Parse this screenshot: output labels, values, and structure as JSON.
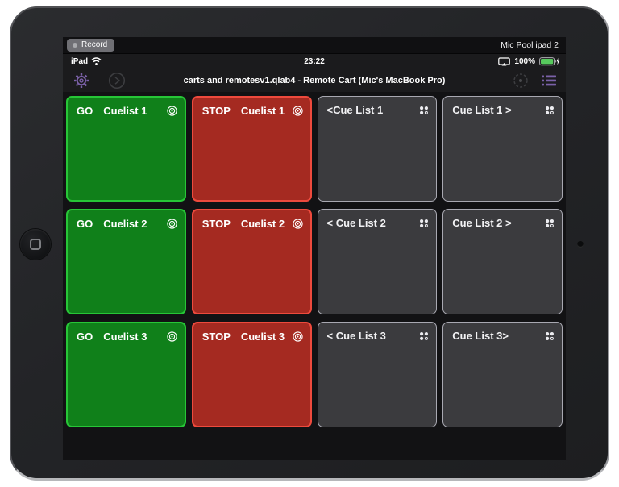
{
  "recording_bar": {
    "record_label": "Record",
    "device_name": "Mic Pool ipad 2"
  },
  "status_bar": {
    "carrier": "iPad",
    "time": "23:22",
    "battery_percent": "100%"
  },
  "toolbar": {
    "title": "carts and remotesv1.qlab4 - Remote Cart (Mic's MacBook Pro)",
    "icons": [
      "settings-gear",
      "go-chevron-circle",
      "target-circle",
      "cue-list"
    ]
  },
  "cart_grid": {
    "buttons": [
      {
        "type": "go",
        "action": "GO",
        "target": "Cuelist 1",
        "icon": "bullseye-icon"
      },
      {
        "type": "stop",
        "action": "STOP",
        "target": "Cuelist 1",
        "icon": "bullseye-icon"
      },
      {
        "type": "cart",
        "label": "<Cue List 1",
        "icon": "four-dots-icon"
      },
      {
        "type": "cart",
        "label": "Cue List 1 >",
        "icon": "four-dots-icon"
      },
      {
        "type": "go",
        "action": "GO",
        "target": "Cuelist 2",
        "icon": "bullseye-icon"
      },
      {
        "type": "stop",
        "action": "STOP",
        "target": "Cuelist 2",
        "icon": "bullseye-icon"
      },
      {
        "type": "cart",
        "label": "< Cue List 2",
        "icon": "four-dots-icon"
      },
      {
        "type": "cart",
        "label": "Cue List 2 >",
        "icon": "four-dots-icon"
      },
      {
        "type": "go",
        "action": "GO",
        "target": "Cuelist 3",
        "icon": "bullseye-icon"
      },
      {
        "type": "stop",
        "action": "STOP",
        "target": "Cuelist 3",
        "icon": "bullseye-icon"
      },
      {
        "type": "cart",
        "label": "< Cue List 3",
        "icon": "four-dots-icon"
      },
      {
        "type": "cart",
        "label": "Cue List 3>",
        "icon": "four-dots-icon"
      }
    ]
  },
  "colors": {
    "go_fill": "#10801a",
    "go_border": "#27c637",
    "stop_fill": "#a52a21",
    "stop_border": "#ee4a3d",
    "cart_fill": "#3b3b3e",
    "cart_border": "#a8a8b1",
    "accent_purple": "#7b61a8",
    "battery_green": "#57c95d"
  }
}
